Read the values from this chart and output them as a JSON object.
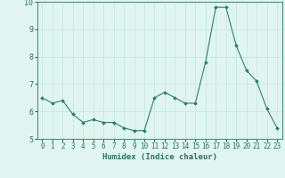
{
  "x": [
    0,
    1,
    2,
    3,
    4,
    5,
    6,
    7,
    8,
    9,
    10,
    11,
    12,
    13,
    14,
    15,
    16,
    17,
    18,
    19,
    20,
    21,
    22,
    23
  ],
  "y": [
    6.5,
    6.3,
    6.4,
    5.9,
    5.6,
    5.7,
    5.6,
    5.6,
    5.4,
    5.3,
    5.3,
    6.5,
    6.7,
    6.5,
    6.3,
    6.3,
    7.8,
    9.8,
    9.8,
    8.4,
    7.5,
    7.1,
    6.1,
    5.4
  ],
  "xlim": [
    -0.5,
    23.5
  ],
  "ylim": [
    5.0,
    10.0
  ],
  "yticks": [
    5,
    6,
    7,
    8,
    9,
    10
  ],
  "xticks": [
    0,
    1,
    2,
    3,
    4,
    5,
    6,
    7,
    8,
    9,
    10,
    11,
    12,
    13,
    14,
    15,
    16,
    17,
    18,
    19,
    20,
    21,
    22,
    23
  ],
  "xlabel": "Humidex (Indice chaleur)",
  "line_color": "#2e7d6e",
  "marker_color": "#2e7d6e",
  "bg_color": "#e0f5f0",
  "grid_color": "#c8e8e2",
  "figsize": [
    3.2,
    2.0
  ],
  "dpi": 100
}
